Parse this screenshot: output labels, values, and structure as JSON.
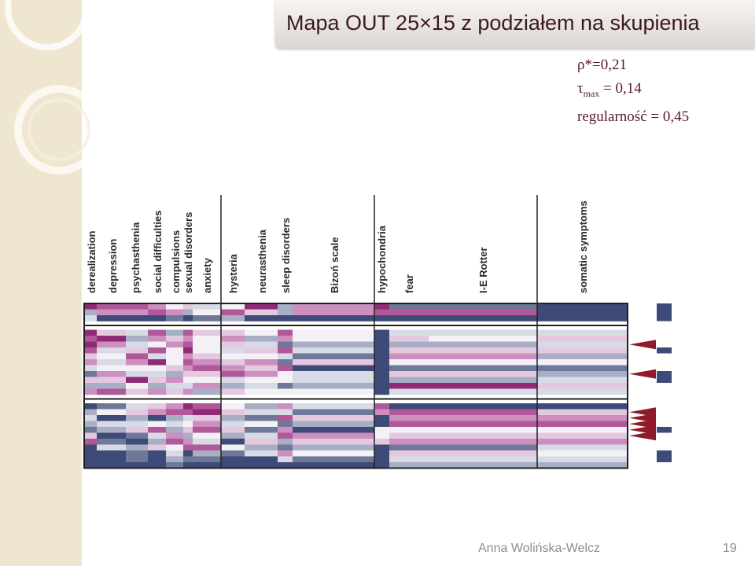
{
  "title": "Mapa OUT 25×15 z podziałem na skupienia",
  "stats": {
    "rho": "ρ*=0,21",
    "tau_symbol": "τ",
    "tau_sub": "max",
    "tau_value": " = 0,14",
    "regularity": "regularność  = 0,45"
  },
  "footer": {
    "author": "Anna Wolińska-Welcz",
    "page": "19"
  },
  "colors": {
    "scale": [
      "#3e4a78",
      "#6e7898",
      "#a8aec4",
      "#d8dbe6",
      "#f4f1f6",
      "#e4c8e0",
      "#cc8fc0",
      "#b0589a",
      "#8e2a76"
    ],
    "title_bar": "#dcd6d2",
    "arrow": "#8e1a2a",
    "cluster_marker": "#3e4a78"
  },
  "chart_data": {
    "type": "heatmap",
    "columns": [
      "derealization",
      "depression",
      "psychasthenia",
      "social difficulties",
      "compulsions",
      "sexual disorders",
      "anxiety",
      "hysteria",
      "neurasthenia",
      "sleep disorders",
      "Bizoń scale",
      "hypochondria",
      "fear",
      "I-E Rotter",
      "somatic symptoms"
    ],
    "clusters": [
      {
        "rows": [
          0,
          2
        ]
      },
      {
        "rows": [
          3,
          13
        ]
      },
      {
        "rows": [
          14,
          24
        ]
      }
    ],
    "value_scale": "color index 0 (dark blue) to 8 (dark magenta)",
    "values": [
      [
        8,
        7,
        7,
        6,
        4,
        5,
        3,
        4,
        8,
        2,
        6,
        8,
        1,
        1,
        0
      ],
      [
        2,
        6,
        6,
        7,
        6,
        2,
        4,
        7,
        5,
        2,
        6,
        7,
        7,
        7,
        0
      ],
      [
        3,
        0,
        0,
        0,
        1,
        0,
        1,
        2,
        0,
        0,
        0,
        0,
        0,
        0,
        0
      ],
      [
        8,
        5,
        3,
        7,
        2,
        7,
        5,
        5,
        4,
        7,
        4,
        0,
        3,
        3,
        3
      ],
      [
        7,
        8,
        2,
        6,
        5,
        6,
        4,
        6,
        2,
        6,
        4,
        0,
        5,
        4,
        5
      ],
      [
        8,
        6,
        3,
        4,
        6,
        7,
        4,
        5,
        3,
        1,
        2,
        0,
        2,
        2,
        3
      ],
      [
        7,
        3,
        5,
        7,
        4,
        8,
        4,
        3,
        5,
        7,
        3,
        0,
        5,
        5,
        5
      ],
      [
        5,
        4,
        7,
        3,
        4,
        6,
        5,
        4,
        4,
        3,
        1,
        0,
        6,
        6,
        2
      ],
      [
        6,
        3,
        6,
        8,
        4,
        7,
        6,
        5,
        6,
        1,
        5,
        0,
        4,
        4,
        4
      ],
      [
        3,
        4,
        4,
        4,
        5,
        6,
        7,
        6,
        5,
        7,
        0,
        0,
        1,
        1,
        1
      ],
      [
        1,
        6,
        3,
        3,
        2,
        5,
        5,
        7,
        6,
        4,
        3,
        0,
        5,
        5,
        2
      ],
      [
        5,
        5,
        8,
        5,
        6,
        4,
        4,
        3,
        4,
        4,
        3,
        0,
        2,
        2,
        3
      ],
      [
        2,
        2,
        4,
        2,
        3,
        3,
        6,
        2,
        3,
        1,
        2,
        0,
        8,
        8,
        5
      ],
      [
        6,
        7,
        5,
        6,
        5,
        6,
        2,
        5,
        4,
        4,
        4,
        0,
        3,
        3,
        3
      ],
      [
        0,
        1,
        3,
        5,
        6,
        8,
        7,
        4,
        2,
        6,
        3,
        7,
        0,
        0,
        0
      ],
      [
        2,
        4,
        5,
        6,
        7,
        7,
        8,
        5,
        3,
        3,
        1,
        6,
        7,
        7,
        5
      ],
      [
        3,
        0,
        2,
        0,
        2,
        3,
        5,
        2,
        1,
        7,
        5,
        0,
        6,
        6,
        6
      ],
      [
        2,
        3,
        3,
        4,
        3,
        4,
        6,
        3,
        4,
        1,
        2,
        0,
        7,
        7,
        7
      ],
      [
        1,
        2,
        5,
        7,
        2,
        5,
        7,
        5,
        1,
        6,
        0,
        4,
        4,
        4,
        4
      ],
      [
        5,
        0,
        1,
        3,
        6,
        2,
        4,
        2,
        3,
        7,
        6,
        4,
        5,
        5,
        5
      ],
      [
        7,
        1,
        0,
        2,
        7,
        6,
        3,
        0,
        5,
        2,
        5,
        5,
        6,
        6,
        6
      ],
      [
        0,
        3,
        2,
        5,
        4,
        7,
        7,
        4,
        2,
        1,
        2,
        0,
        1,
        1,
        3
      ],
      [
        0,
        0,
        1,
        0,
        3,
        0,
        2,
        1,
        3,
        6,
        4,
        0,
        5,
        5,
        4
      ],
      [
        0,
        0,
        1,
        0,
        2,
        1,
        1,
        0,
        0,
        3,
        1,
        0,
        3,
        3,
        3
      ],
      [
        0,
        0,
        0,
        0,
        1,
        0,
        0,
        0,
        0,
        0,
        0,
        0,
        2,
        2,
        2
      ]
    ],
    "markers": {
      "cluster_bars": [
        {
          "from_row": 0,
          "to_row": 2
        },
        {
          "from_row": 6,
          "to_row": 6
        },
        {
          "from_row": 10,
          "to_row": 11
        },
        {
          "from_row": 18,
          "to_row": 18
        },
        {
          "from_row": 22,
          "to_row": 23
        }
      ],
      "arrow_rows": [
        5,
        10,
        15,
        16,
        17,
        18,
        19
      ]
    }
  }
}
